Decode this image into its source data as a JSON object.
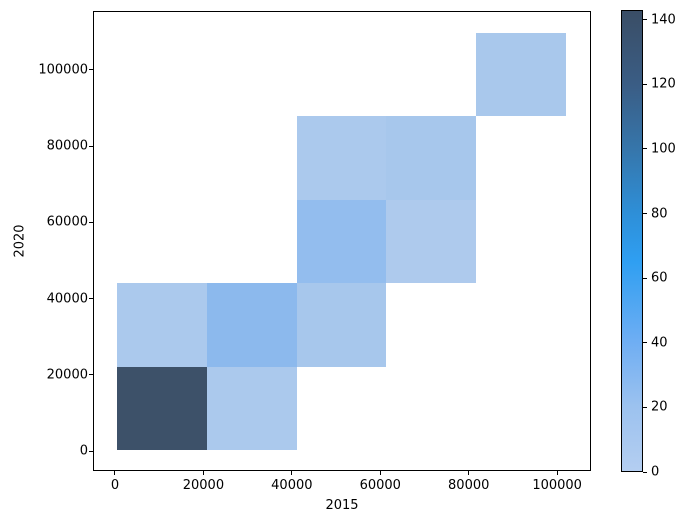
{
  "chart_data": {
    "type": "heatmap",
    "title": "",
    "xlabel": "2015",
    "ylabel": "2020",
    "x_ticks": [
      0,
      20000,
      40000,
      60000,
      80000,
      100000
    ],
    "y_ticks": [
      0,
      20000,
      40000,
      60000,
      80000,
      100000
    ],
    "xlim": [
      -4975,
      107430
    ],
    "ylim": [
      -4900,
      115400
    ],
    "grid": false,
    "x_bin_edges": [
      450,
      20760,
      41070,
      61380,
      81690,
      102000
    ],
    "y_bin_edges": [
      300,
      22180,
      44060,
      65940,
      87820,
      109700
    ],
    "cells": [
      {
        "x_bin": 0,
        "y_bin": 0,
        "count": 143,
        "color": "#3d5169"
      },
      {
        "x_bin": 1,
        "y_bin": 0,
        "count": 13,
        "color": "#abc9ed"
      },
      {
        "x_bin": 0,
        "y_bin": 1,
        "count": 13,
        "color": "#abc9ed"
      },
      {
        "x_bin": 1,
        "y_bin": 1,
        "count": 30,
        "color": "#8cb9ed"
      },
      {
        "x_bin": 2,
        "y_bin": 1,
        "count": 14,
        "color": "#a7c7ec"
      },
      {
        "x_bin": 2,
        "y_bin": 2,
        "count": 25,
        "color": "#93bdee"
      },
      {
        "x_bin": 3,
        "y_bin": 2,
        "count": 10,
        "color": "#aecaed"
      },
      {
        "x_bin": 2,
        "y_bin": 3,
        "count": 12,
        "color": "#abc9ed"
      },
      {
        "x_bin": 3,
        "y_bin": 3,
        "count": 14,
        "color": "#a7c7ec"
      },
      {
        "x_bin": 4,
        "y_bin": 4,
        "count": 13,
        "color": "#a9c8ec"
      }
    ],
    "colorbar": {
      "min": 0,
      "max": 143,
      "ticks": [
        0,
        20,
        40,
        60,
        80,
        100,
        120,
        140
      ],
      "gradient_stops": [
        {
          "value": 0,
          "color": "#b4cef1"
        },
        {
          "value": 20,
          "color": "#9cc2ef"
        },
        {
          "value": 40,
          "color": "#6faef3"
        },
        {
          "value": 65,
          "color": "#2f9ff2"
        },
        {
          "value": 80,
          "color": "#2e8fd8"
        },
        {
          "value": 100,
          "color": "#3676ab"
        },
        {
          "value": 120,
          "color": "#3a5d85"
        },
        {
          "value": 143,
          "color": "#3a4e66"
        }
      ]
    },
    "colors": {
      "background": "#ffffff",
      "spine": "#000000",
      "text": "#000000"
    }
  }
}
